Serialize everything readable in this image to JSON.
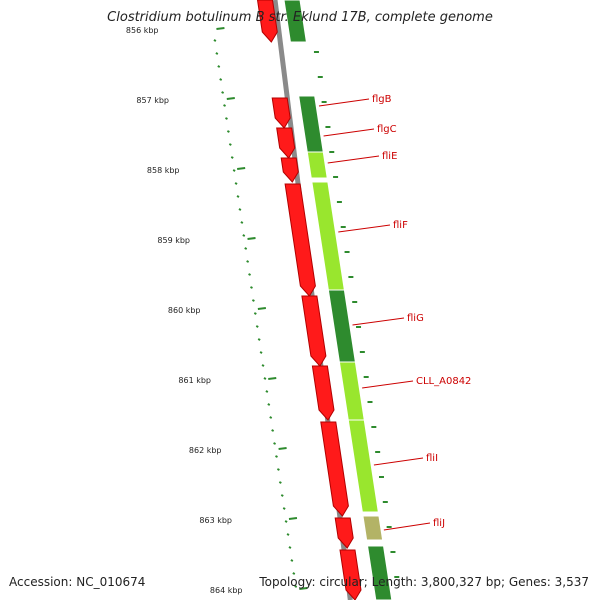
{
  "title": "Clostridium botulinum B str. Eklund 17B, complete genome",
  "footer": {
    "accession": "Accession: NC_010674",
    "topology": "Topology: circular; Length: 3,800,327 bp; Genes: 3,537"
  },
  "scale_labels": [
    {
      "kbp": 856,
      "label": "856 kbp"
    },
    {
      "kbp": 857,
      "label": "857 kbp"
    },
    {
      "kbp": 858,
      "label": "858 kbp"
    },
    {
      "kbp": 859,
      "label": "859 kbp"
    },
    {
      "kbp": 860,
      "label": "860 kbp"
    },
    {
      "kbp": 861,
      "label": "861 kbp"
    },
    {
      "kbp": 862,
      "label": "862 kbp"
    },
    {
      "kbp": 863,
      "label": "863 kbp"
    },
    {
      "kbp": 864,
      "label": "864 kbp"
    }
  ],
  "gene_labels": [
    "flgB",
    "flgC",
    "fliE",
    "fliF",
    "fliG",
    "CLL_A0842",
    "fliI",
    "fliJ"
  ],
  "colors": {
    "cds": "#ff1a1a",
    "cds_edge": "#b30000",
    "backbone": "#8a8a8a",
    "ticks": "#2e8b2e",
    "label": "#cc0000",
    "dark_green": "#2e8b2e",
    "light_green": "#99e62e",
    "olive": "#b3b366"
  }
}
